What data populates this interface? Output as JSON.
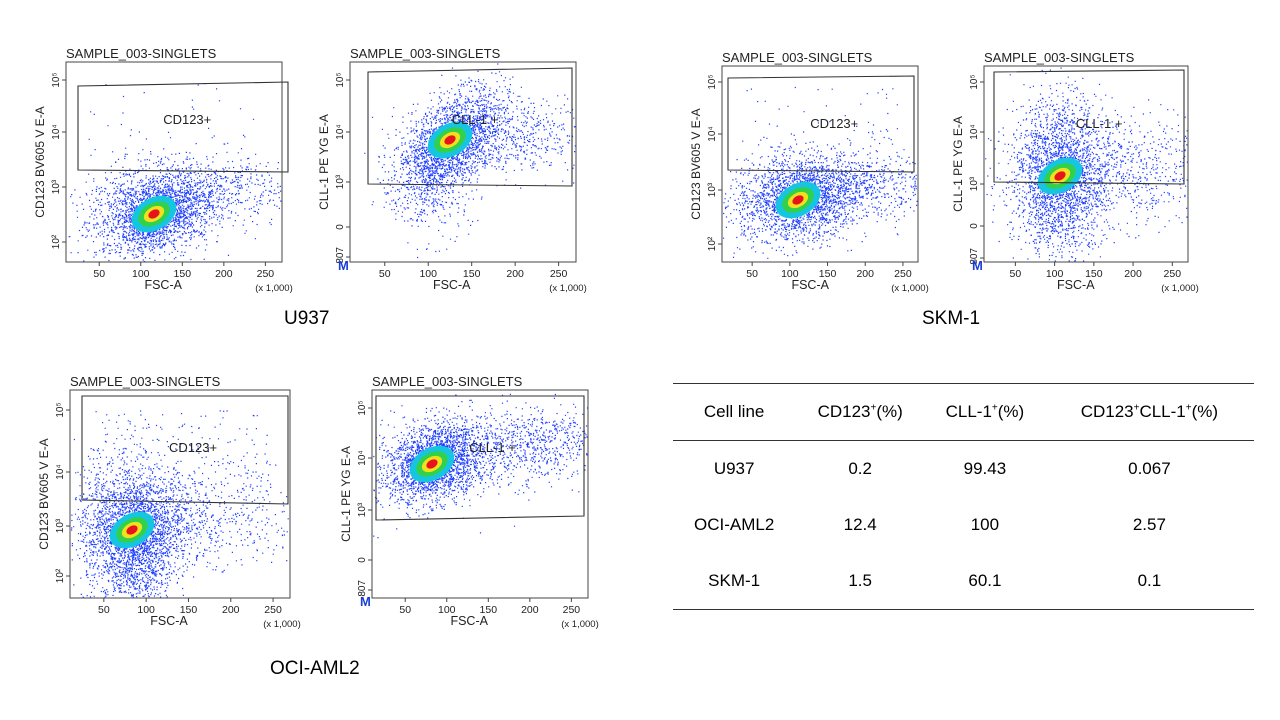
{
  "panels": [
    {
      "id": "u937-cd123",
      "title": "SAMPLE_003-SINGLETS",
      "ylabel": "CD123 BV605 V E-A",
      "xlabel": "FSC-A",
      "xscale_note": "(x 1,000)",
      "xticks": [
        "50",
        "100",
        "150",
        "200",
        "250"
      ],
      "yticks": [
        "10²",
        "10³",
        "10⁴",
        "10⁵"
      ],
      "gate_label": "CD123+",
      "marker": ""
    },
    {
      "id": "u937-cll1",
      "title": "SAMPLE_003-SINGLETS",
      "ylabel": "CLL-1 PE YG E-A",
      "xlabel": "FSC-A",
      "xscale_note": "(x 1,000)",
      "xticks": [
        "50",
        "100",
        "150",
        "200",
        "250"
      ],
      "yticks": [
        "-807",
        "0",
        "10³",
        "10⁴",
        "10⁵"
      ],
      "gate_label": "CLL-1 +",
      "marker": "M"
    },
    {
      "id": "skm1-cd123",
      "title": "SAMPLE_003-SINGLETS",
      "ylabel": "CD123 BV605 V E-A",
      "xlabel": "FSC-A",
      "xscale_note": "(x 1,000)",
      "xticks": [
        "50",
        "100",
        "150",
        "200",
        "250"
      ],
      "yticks": [
        "10²",
        "10³",
        "10⁴",
        "10⁵"
      ],
      "gate_label": "CD123+",
      "marker": ""
    },
    {
      "id": "skm1-cll1",
      "title": "SAMPLE_003-SINGLETS",
      "ylabel": "CLL-1 PE YG E-A",
      "xlabel": "FSC-A",
      "xscale_note": "(x 1,000)",
      "xticks": [
        "50",
        "100",
        "150",
        "200",
        "250"
      ],
      "yticks": [
        "-807",
        "0",
        "10³",
        "10⁴",
        "10⁵"
      ],
      "gate_label": "CLL-1 +",
      "marker": "M"
    },
    {
      "id": "oci-cd123",
      "title": "SAMPLE_003-SINGLETS",
      "ylabel": "CD123 BV605 V E-A",
      "xlabel": "FSC-A",
      "xscale_note": "(x 1,000)",
      "xticks": [
        "50",
        "100",
        "150",
        "200",
        "250"
      ],
      "yticks": [
        "10²",
        "10³",
        "10⁴",
        "10⁵"
      ],
      "gate_label": "CD123+",
      "marker": ""
    },
    {
      "id": "oci-cll1",
      "title": "SAMPLE_003-SINGLETS",
      "ylabel": "CLL-1 PE YG E-A",
      "xlabel": "FSC-A",
      "xscale_note": "(x 1,000)",
      "xticks": [
        "50",
        "100",
        "150",
        "200",
        "250"
      ],
      "yticks": [
        "-807",
        "0",
        "10³",
        "10⁴",
        "10⁵"
      ],
      "gate_label": "CLL-1 +",
      "marker": "M"
    }
  ],
  "captions": {
    "u937": "U937",
    "skm1": "SKM-1",
    "oci": "OCI-AML2"
  },
  "table": {
    "headers": [
      {
        "base": "Cell line",
        "sup": "",
        "suffix": ""
      },
      {
        "base": "CD123",
        "sup": "+",
        "suffix": "(%)"
      },
      {
        "base": "CLL-1",
        "sup": "+",
        "suffix": "(%)"
      },
      {
        "base": "CD123",
        "sup": "+",
        "suffix": "CLL-1",
        "sup2": "+",
        "suffix2": "(%)"
      }
    ],
    "rows": [
      [
        "U937",
        "0.2",
        "99.43",
        "0.067"
      ],
      [
        "OCI-AML2",
        "12.4",
        "100",
        "2.57"
      ],
      [
        "SKM-1",
        "1.5",
        "60.1",
        "0.1"
      ]
    ]
  },
  "colors": {
    "low": "#1f3fff",
    "mid": "#16c6e0",
    "midhigh": "#33d04a",
    "high": "#f0e020",
    "peak": "#e8141c",
    "marker": "#1a3fd8"
  }
}
